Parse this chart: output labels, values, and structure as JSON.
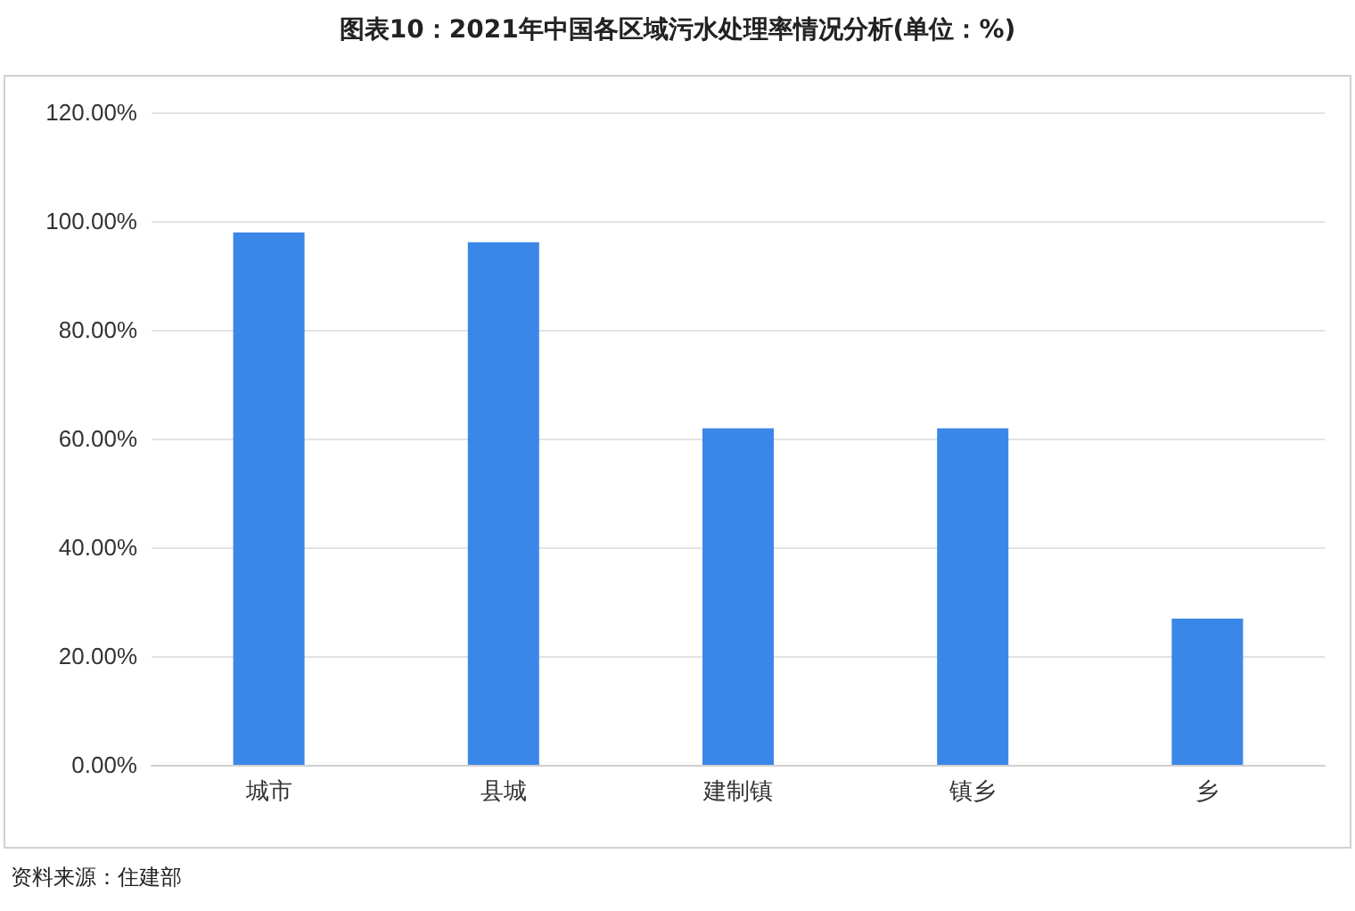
{
  "chart_data": {
    "type": "bar",
    "title": "图表10：2021年中国各区域污水处理率情况分析(单位：%)",
    "categories": [
      "城市",
      "县城",
      "建制镇",
      "镇乡",
      "乡"
    ],
    "values": [
      97.9,
      96.1,
      61.9,
      61.9,
      26.9
    ],
    "color": "#3a87e8",
    "ylim": [
      0,
      120
    ],
    "yticks": [
      {
        "value": 0,
        "label": "0.00%"
      },
      {
        "value": 20,
        "label": "20.00%"
      },
      {
        "value": 40,
        "label": "40.00%"
      },
      {
        "value": 60,
        "label": "60.00%"
      },
      {
        "value": 80,
        "label": "80.00%"
      },
      {
        "value": 100,
        "label": "100.00%"
      },
      {
        "value": 120,
        "label": "120.00%"
      }
    ],
    "grid": "y",
    "annotations": [
      "资料来源：住建部"
    ]
  }
}
